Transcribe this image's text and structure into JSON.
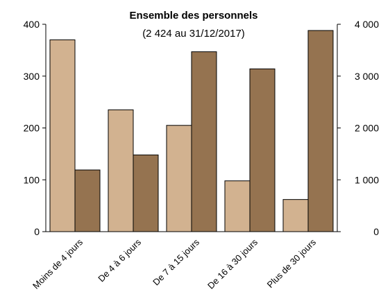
{
  "chart_data": {
    "type": "bar",
    "title": "Ensemble des personnels",
    "subtitle": "(2 424 au 31/12/2017)",
    "categories": [
      "Moins de 4 jours",
      "De 4 à 6 jours",
      "De 7 à 15 jours",
      "De 16 à 30 jours",
      "Plus de 30 jours"
    ],
    "series": [
      {
        "axis": "left",
        "color": "#D2B290",
        "values": [
          370,
          235,
          205,
          98,
          62
        ]
      },
      {
        "axis": "right",
        "color": "#957350",
        "values": [
          1190,
          1480,
          3470,
          3140,
          3880
        ]
      }
    ],
    "y_left": {
      "range": [
        0,
        400
      ],
      "ticks": [
        "0",
        "100",
        "200",
        "300",
        "400"
      ]
    },
    "y_right": {
      "range": [
        0,
        4000
      ],
      "ticks": [
        "0",
        "1 000",
        "2 000",
        "3 000",
        "4 000"
      ]
    },
    "grid": false,
    "legend": "none"
  }
}
